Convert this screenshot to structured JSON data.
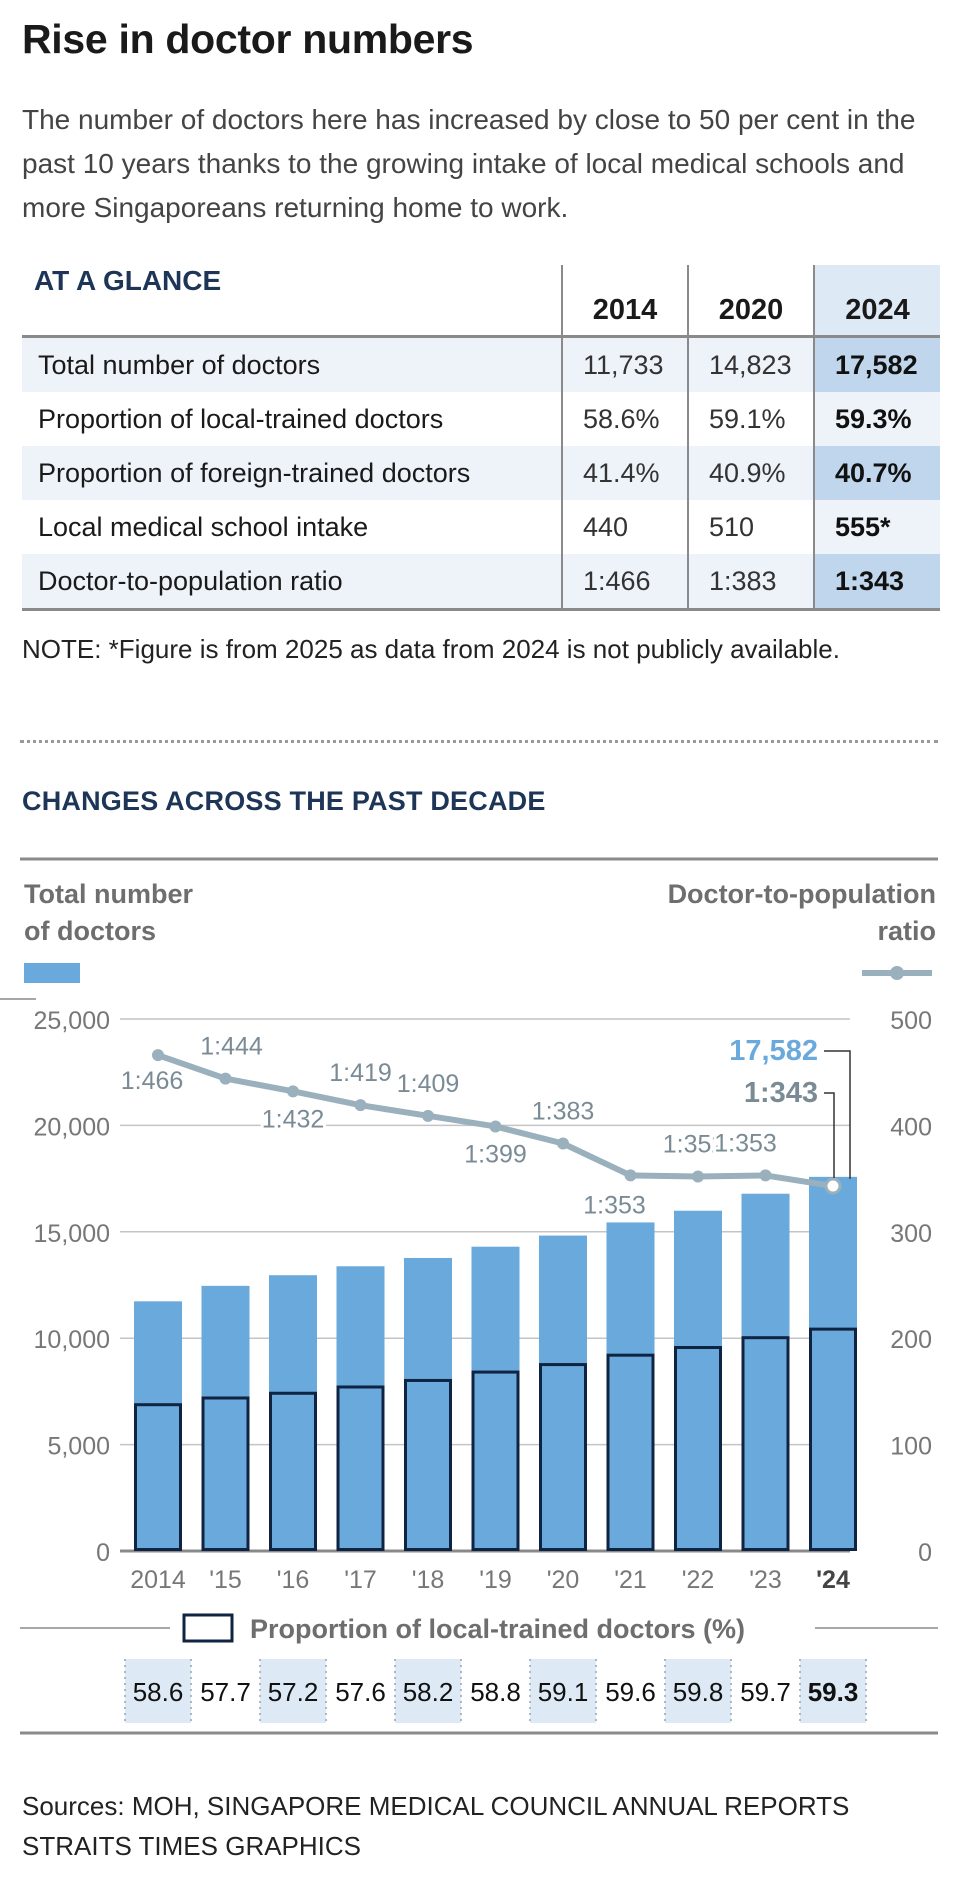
{
  "header": {
    "title": "Rise in doctor numbers",
    "intro": "The number of doctors here has increased by close to 50 per cent in the past 10 years thanks to the growing intake of local medical schools and more Singaporeans returning home to work."
  },
  "glance": {
    "label": "AT A GLANCE",
    "years": [
      "2014",
      "2020",
      "2024"
    ],
    "rows": [
      {
        "label": "Total number of doctors",
        "values": [
          "11,733",
          "14,823",
          "17,582"
        ]
      },
      {
        "label": "Proportion of local-trained doctors",
        "values": [
          "58.6%",
          "59.1%",
          "59.3%"
        ]
      },
      {
        "label": "Proportion of foreign-trained doctors",
        "values": [
          "41.4%",
          "40.9%",
          "40.7%"
        ]
      },
      {
        "label": "Local medical school intake",
        "values": [
          "440",
          "510",
          "555*"
        ]
      },
      {
        "label": "Doctor-to-population ratio",
        "values": [
          "1:466",
          "1:383",
          "1:343"
        ]
      }
    ],
    "note": "NOTE: *Figure is from 2025 as data from 2024 is not publicly available."
  },
  "section_title": "CHANGES ACROSS THE PAST DECADE",
  "colors": {
    "bar": "#6aa9dc",
    "bar_local_outline": "#0f2342",
    "line": "#9ab1bd",
    "navy": "#1d3557",
    "shade": "#dde9f4"
  },
  "chart_data": {
    "type": "bar",
    "left_title": [
      "Total number",
      "of doctors"
    ],
    "right_title": [
      "Doctor-to-population",
      "ratio"
    ],
    "categories": [
      "2014",
      "'15",
      "'16",
      "'17",
      "'18",
      "'19",
      "'20",
      "'21",
      "'22",
      "'23",
      "'24"
    ],
    "ylim": [
      0,
      25000
    ],
    "y_ticks": [
      "0",
      "5,000",
      "10,000",
      "15,000",
      "20,000",
      "25,000"
    ],
    "y2lim": [
      0,
      500
    ],
    "y2_ticks": [
      "0",
      "100",
      "200",
      "300",
      "400",
      "500"
    ],
    "grid": true,
    "series": [
      {
        "name": "Total number of doctors",
        "values": [
          11733,
          12460,
          12960,
          13380,
          13770,
          14300,
          14823,
          15440,
          15990,
          16790,
          17582
        ]
      },
      {
        "name": "Proportion of local-trained doctors (%)",
        "values": [
          6875,
          7190,
          7413,
          7707,
          8014,
          8408,
          8760,
          9202,
          9562,
          10024,
          10426
        ]
      }
    ],
    "ratio": {
      "values": [
        466,
        444,
        432,
        419,
        409,
        399,
        383,
        353,
        352,
        353,
        343
      ],
      "labels": [
        "1:466",
        "1:444",
        "1:432",
        "1:419",
        "1:409",
        "1:399",
        "1:383",
        "1:353",
        "1:352",
        "1:353",
        "1:343"
      ]
    },
    "callouts": {
      "total": "17,582",
      "ratio": "1:343"
    },
    "legend_local": "Proportion of local-trained doctors (%)",
    "local_pct": [
      "58.6",
      "57.7",
      "57.2",
      "57.6",
      "58.2",
      "58.8",
      "59.1",
      "59.6",
      "59.8",
      "59.7",
      "59.3"
    ]
  },
  "sources": [
    "Sources: MOH, SINGAPORE MEDICAL COUNCIL ANNUAL REPORTS",
    "STRAITS TIMES GRAPHICS"
  ]
}
